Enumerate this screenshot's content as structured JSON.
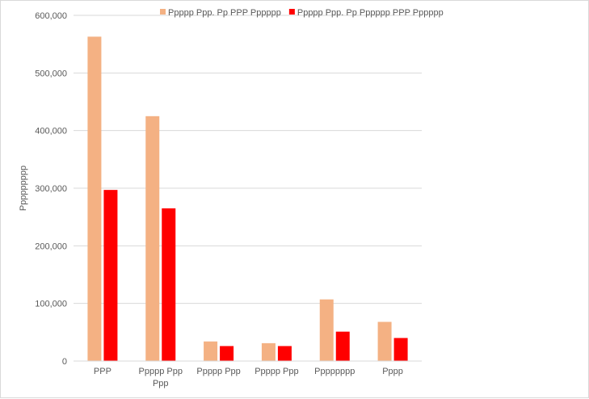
{
  "chart_data": {
    "type": "bar",
    "ylabel": "Ppppppppp",
    "xlabel": "",
    "ylim": [
      0,
      600000
    ],
    "yticks": [
      0,
      100000,
      200000,
      300000,
      400000,
      500000,
      600000
    ],
    "ytick_labels": [
      "0",
      "100,000",
      "200,000",
      "300,000",
      "400,000",
      "500,000",
      "600,000"
    ],
    "grid": true,
    "legend_position": "top",
    "categories": [
      [
        "PPP"
      ],
      [
        "Ppppp Ppp",
        "Ppp"
      ],
      [
        "Ppppp Ppp"
      ],
      [
        "Ppppp Ppp"
      ],
      [
        "Pppppppp"
      ],
      [
        "Pppp"
      ]
    ],
    "series": [
      {
        "name": "Ppppp Ppp. Pp PPP Pppppp",
        "color": "#f4b183",
        "values": [
          563000,
          425000,
          34000,
          31000,
          107000,
          68000
        ]
      },
      {
        "name": "Ppppp Ppp. Pp Pppppp PPP Pppppp",
        "color": "#ff0000",
        "values": [
          297000,
          265000,
          26000,
          26000,
          51000,
          40000
        ]
      }
    ]
  }
}
